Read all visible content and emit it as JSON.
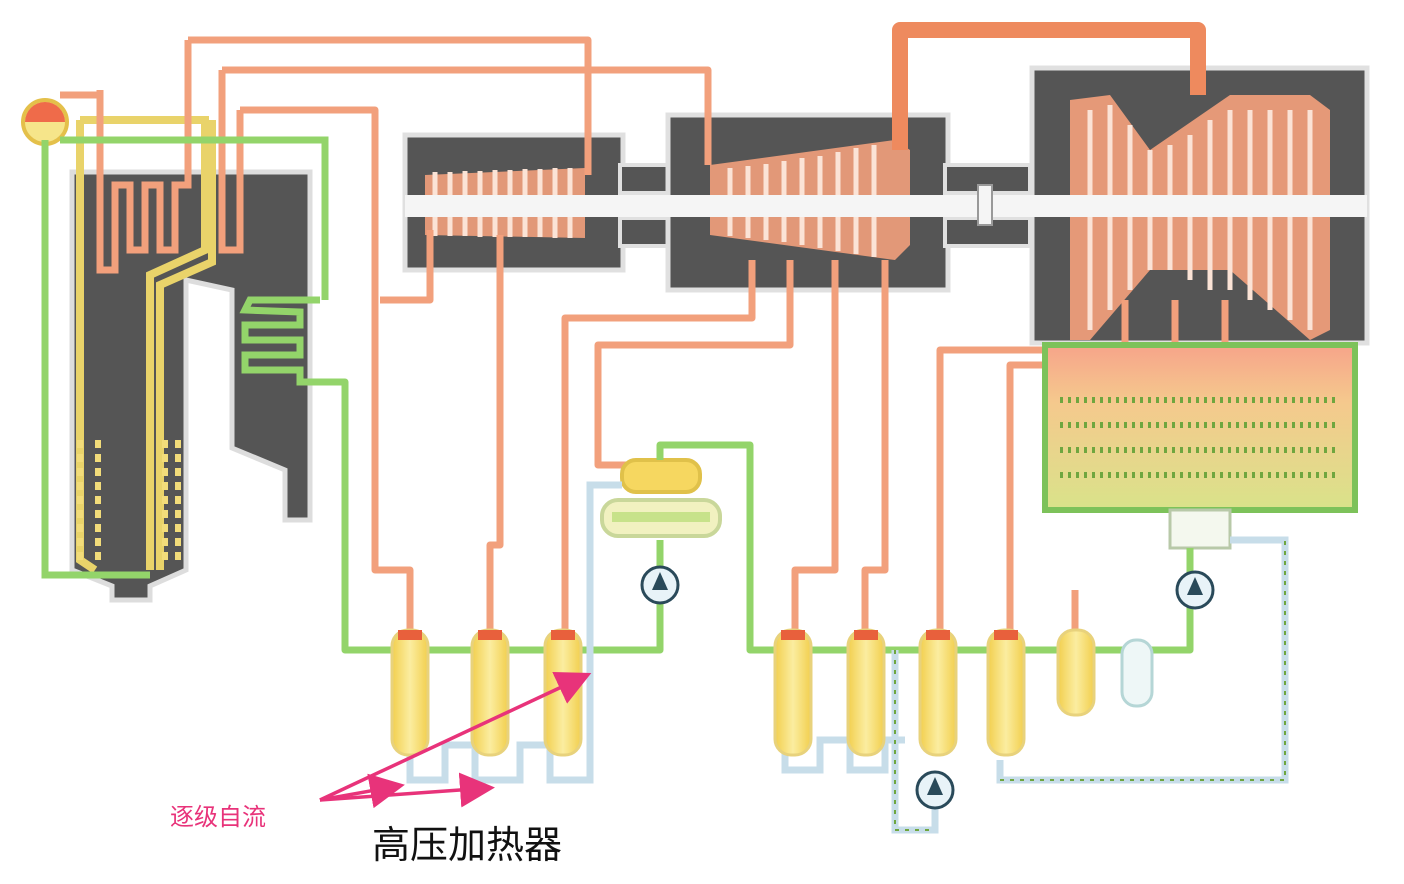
{
  "labels": {
    "cascade_drain": "逐级自流",
    "hp_heaters": "高压加热器"
  },
  "colors": {
    "steam": "#f2a07c",
    "steam_dark": "#e8794c",
    "feedwater": "#93d46a",
    "feedwater_dark": "#5aa23a",
    "saturated": "#f0e08a",
    "heater_body": "#f7e07a",
    "casing": "#555555",
    "drain": "#c7dde9",
    "arrow": "#e8337a"
  }
}
